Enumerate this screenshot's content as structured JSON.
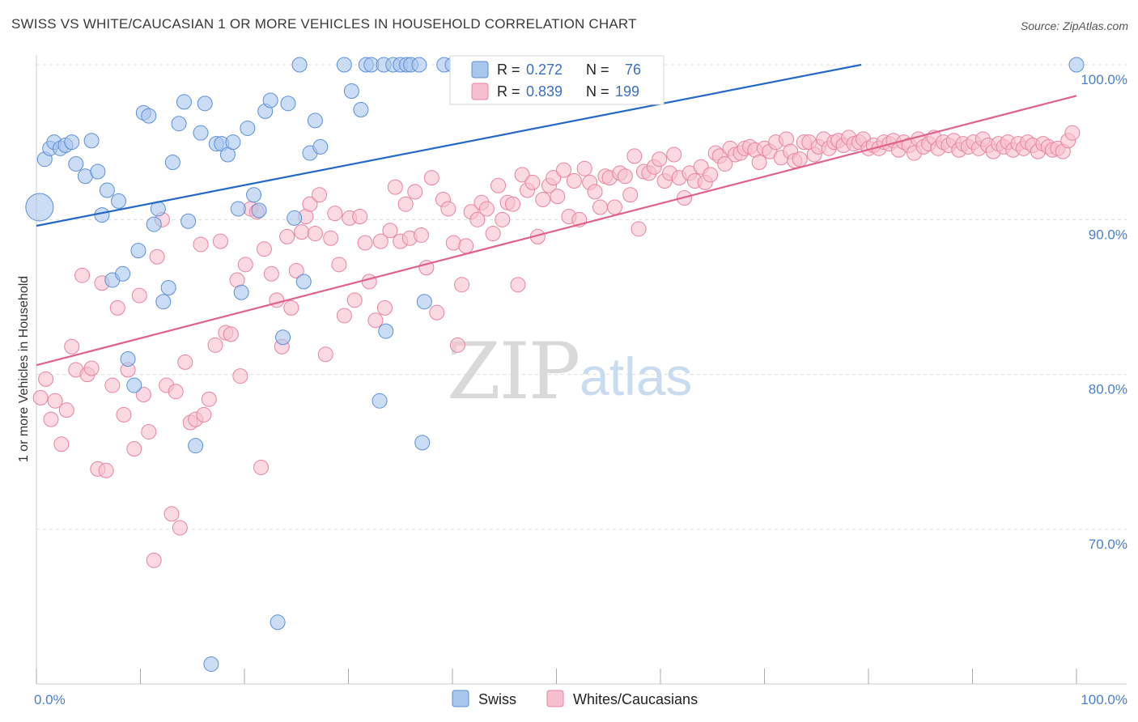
{
  "title": "SWISS VS WHITE/CAUCASIAN 1 OR MORE VEHICLES IN HOUSEHOLD CORRELATION CHART",
  "source": "Source: ZipAtlas.com",
  "watermark": {
    "zip": "ZIP",
    "atlas": "atlas"
  },
  "colors": {
    "swiss_fill": "#a9c6ec",
    "swiss_stroke": "#5b8fd6",
    "swiss_line": "#2468c8",
    "white_fill": "#f6bfd0",
    "white_stroke": "#e8839f",
    "white_line": "#e0628c",
    "axis_text": "#4a7fc9",
    "grid": "#dddddd"
  },
  "legend": {
    "rows": [
      {
        "r_label": "R =",
        "r_value": "0.272",
        "n_label": "N =",
        "n_value": "76"
      },
      {
        "r_label": "R =",
        "r_value": "0.839",
        "n_label": "N =",
        "n_value": "199"
      }
    ]
  },
  "bottom_legend": [
    "Swiss",
    "Whites/Caucasians"
  ],
  "chart_data": {
    "type": "scatter",
    "title": "SWISS VS WHITE/CAUCASIAN 1 OR MORE VEHICLES IN HOUSEHOLD CORRELATION CHART",
    "xlabel": "",
    "ylabel": "1 or more Vehicles in Household",
    "xlim": [
      0,
      100
    ],
    "ylim": [
      60.5,
      101.5
    ],
    "x_tick_labels": [
      "0.0%",
      "100.0%"
    ],
    "y_ticks": [
      70,
      80,
      90,
      100
    ],
    "y_tick_labels": [
      "70.0%",
      "80.0%",
      "90.0%",
      "100.0%"
    ],
    "grid": true,
    "legend_position": "top-center",
    "series": [
      {
        "name": "Swiss",
        "R": 0.272,
        "N": 76,
        "trend": {
          "x": [
            0,
            79.3
          ],
          "y": [
            89.6,
            100.0
          ]
        },
        "points": [
          [
            0.3,
            90.8
          ],
          [
            0.8,
            93.9
          ],
          [
            1.3,
            94.6
          ],
          [
            1.7,
            95.0
          ],
          [
            2.3,
            94.6
          ],
          [
            2.8,
            94.8
          ],
          [
            3.4,
            95.0
          ],
          [
            3.8,
            93.6
          ],
          [
            4.7,
            92.8
          ],
          [
            5.3,
            95.1
          ],
          [
            5.9,
            93.1
          ],
          [
            6.3,
            90.3
          ],
          [
            6.8,
            91.9
          ],
          [
            7.3,
            86.1
          ],
          [
            7.9,
            91.2
          ],
          [
            8.3,
            86.5
          ],
          [
            8.8,
            81.0
          ],
          [
            9.4,
            79.3
          ],
          [
            9.8,
            88.0
          ],
          [
            10.3,
            96.9
          ],
          [
            10.8,
            96.7
          ],
          [
            11.3,
            89.7
          ],
          [
            11.7,
            90.7
          ],
          [
            12.2,
            84.7
          ],
          [
            12.7,
            85.6
          ],
          [
            13.1,
            93.7
          ],
          [
            13.7,
            96.2
          ],
          [
            14.2,
            97.6
          ],
          [
            14.6,
            89.9
          ],
          [
            15.3,
            75.4
          ],
          [
            15.8,
            95.6
          ],
          [
            16.2,
            97.5
          ],
          [
            16.8,
            61.3
          ],
          [
            17.3,
            94.9
          ],
          [
            17.8,
            94.9
          ],
          [
            18.4,
            94.2
          ],
          [
            18.9,
            95.0
          ],
          [
            19.4,
            90.7
          ],
          [
            19.7,
            85.3
          ],
          [
            20.3,
            95.9
          ],
          [
            20.9,
            91.6
          ],
          [
            21.4,
            90.6
          ],
          [
            22.0,
            97.0
          ],
          [
            22.5,
            97.7
          ],
          [
            23.2,
            64.0
          ],
          [
            23.7,
            82.4
          ],
          [
            24.2,
            97.5
          ],
          [
            24.8,
            90.1
          ],
          [
            25.3,
            100.0
          ],
          [
            25.7,
            86.0
          ],
          [
            26.3,
            94.3
          ],
          [
            26.8,
            96.4
          ],
          [
            27.3,
            94.7
          ],
          [
            29.6,
            100.0
          ],
          [
            30.3,
            98.3
          ],
          [
            31.2,
            97.1
          ],
          [
            31.7,
            100.0
          ],
          [
            32.2,
            100.0
          ],
          [
            33.0,
            78.3
          ],
          [
            33.4,
            100.0
          ],
          [
            33.6,
            82.8
          ],
          [
            34.3,
            100.0
          ],
          [
            35.0,
            100.0
          ],
          [
            35.6,
            100.0
          ],
          [
            36.0,
            100.0
          ],
          [
            36.8,
            100.0
          ],
          [
            37.1,
            75.6
          ],
          [
            37.3,
            84.7
          ],
          [
            39.2,
            100.0
          ],
          [
            40.0,
            100.0
          ],
          [
            40.9,
            100.0
          ],
          [
            41.9,
            100.0
          ],
          [
            42.7,
            100.0
          ],
          [
            43.8,
            100.0
          ],
          [
            44.5,
            100.0
          ],
          [
            100.0,
            100.0
          ]
        ]
      },
      {
        "name": "Whites/Caucasians",
        "R": 0.839,
        "N": 199,
        "trend": {
          "x": [
            0,
            100
          ],
          "y": [
            80.6,
            98.0
          ]
        },
        "points": [
          [
            0.4,
            78.5
          ],
          [
            0.9,
            79.7
          ],
          [
            1.4,
            77.1
          ],
          [
            1.8,
            78.3
          ],
          [
            2.4,
            75.5
          ],
          [
            2.9,
            77.7
          ],
          [
            3.4,
            81.8
          ],
          [
            3.8,
            80.3
          ],
          [
            4.4,
            86.4
          ],
          [
            4.9,
            80.0
          ],
          [
            5.3,
            80.4
          ],
          [
            5.9,
            73.9
          ],
          [
            6.3,
            85.9
          ],
          [
            6.7,
            73.8
          ],
          [
            7.3,
            79.3
          ],
          [
            7.8,
            84.3
          ],
          [
            8.4,
            77.4
          ],
          [
            8.8,
            80.3
          ],
          [
            9.4,
            75.2
          ],
          [
            9.9,
            85.1
          ],
          [
            10.3,
            78.7
          ],
          [
            10.8,
            76.3
          ],
          [
            11.3,
            68.0
          ],
          [
            11.6,
            87.6
          ],
          [
            12.1,
            90.0
          ],
          [
            12.5,
            79.3
          ],
          [
            13.0,
            71.0
          ],
          [
            13.4,
            78.9
          ],
          [
            13.8,
            70.1
          ],
          [
            14.3,
            80.8
          ],
          [
            14.8,
            76.9
          ],
          [
            15.3,
            77.1
          ],
          [
            15.8,
            88.4
          ],
          [
            16.1,
            77.4
          ],
          [
            16.6,
            78.4
          ],
          [
            17.2,
            81.9
          ],
          [
            17.7,
            88.6
          ],
          [
            18.2,
            82.7
          ],
          [
            18.7,
            82.6
          ],
          [
            19.3,
            86.1
          ],
          [
            19.6,
            79.9
          ],
          [
            20.1,
            87.1
          ],
          [
            20.6,
            90.7
          ],
          [
            21.2,
            90.5
          ],
          [
            21.6,
            74.0
          ],
          [
            21.9,
            88.1
          ],
          [
            22.6,
            86.5
          ],
          [
            23.1,
            84.8
          ],
          [
            23.6,
            81.8
          ],
          [
            24.1,
            88.9
          ],
          [
            24.5,
            84.3
          ],
          [
            25.0,
            86.7
          ],
          [
            25.5,
            89.2
          ],
          [
            25.9,
            90.2
          ],
          [
            26.3,
            91.0
          ],
          [
            26.8,
            89.1
          ],
          [
            27.2,
            91.6
          ],
          [
            27.8,
            81.3
          ],
          [
            28.3,
            88.8
          ],
          [
            28.7,
            90.4
          ],
          [
            29.1,
            87.1
          ],
          [
            29.6,
            83.8
          ],
          [
            30.1,
            90.1
          ],
          [
            30.6,
            84.8
          ],
          [
            31.1,
            90.2
          ],
          [
            31.6,
            88.5
          ],
          [
            32.0,
            86.0
          ],
          [
            32.6,
            83.5
          ],
          [
            33.1,
            88.6
          ],
          [
            33.5,
            84.3
          ],
          [
            34.0,
            89.3
          ],
          [
            34.5,
            92.1
          ],
          [
            35.0,
            88.6
          ],
          [
            35.5,
            91.0
          ],
          [
            35.9,
            88.8
          ],
          [
            36.4,
            91.8
          ],
          [
            37.0,
            89.0
          ],
          [
            37.5,
            86.9
          ],
          [
            38.0,
            92.7
          ],
          [
            38.5,
            84.0
          ],
          [
            39.1,
            91.3
          ],
          [
            39.6,
            90.7
          ],
          [
            40.1,
            88.5
          ],
          [
            40.5,
            81.9
          ],
          [
            40.9,
            85.8
          ],
          [
            41.3,
            88.3
          ],
          [
            41.8,
            90.5
          ],
          [
            42.4,
            90.0
          ],
          [
            42.8,
            91.1
          ],
          [
            43.3,
            90.7
          ],
          [
            43.9,
            89.1
          ],
          [
            44.4,
            92.2
          ],
          [
            44.8,
            90.0
          ],
          [
            45.3,
            91.1
          ],
          [
            45.8,
            91.0
          ],
          [
            46.3,
            85.8
          ],
          [
            46.7,
            92.9
          ],
          [
            47.2,
            91.9
          ],
          [
            47.7,
            92.4
          ],
          [
            48.2,
            88.9
          ],
          [
            48.7,
            91.3
          ],
          [
            49.3,
            92.2
          ],
          [
            49.7,
            92.7
          ],
          [
            50.1,
            91.5
          ],
          [
            50.7,
            93.2
          ],
          [
            51.2,
            90.2
          ],
          [
            51.7,
            92.5
          ],
          [
            52.2,
            90.0
          ],
          [
            52.7,
            93.3
          ],
          [
            53.2,
            92.4
          ],
          [
            53.7,
            91.8
          ],
          [
            54.2,
            90.8
          ],
          [
            54.7,
            92.8
          ],
          [
            55.1,
            92.7
          ],
          [
            55.6,
            90.8
          ],
          [
            56.1,
            93.0
          ],
          [
            56.6,
            92.8
          ],
          [
            57.1,
            91.6
          ],
          [
            57.5,
            94.1
          ],
          [
            57.9,
            89.4
          ],
          [
            58.4,
            93.1
          ],
          [
            58.9,
            93.0
          ],
          [
            59.4,
            93.4
          ],
          [
            59.9,
            93.9
          ],
          [
            60.4,
            92.5
          ],
          [
            60.9,
            93.0
          ],
          [
            61.3,
            94.2
          ],
          [
            61.8,
            92.7
          ],
          [
            62.3,
            91.4
          ],
          [
            62.8,
            93.0
          ],
          [
            63.3,
            92.5
          ],
          [
            63.9,
            93.4
          ],
          [
            64.3,
            92.4
          ],
          [
            64.8,
            92.9
          ],
          [
            65.3,
            94.3
          ],
          [
            65.7,
            94.1
          ],
          [
            66.2,
            93.6
          ],
          [
            66.7,
            94.6
          ],
          [
            67.2,
            94.2
          ],
          [
            67.7,
            94.3
          ],
          [
            68.1,
            94.6
          ],
          [
            68.6,
            94.7
          ],
          [
            69.1,
            94.5
          ],
          [
            69.5,
            93.7
          ],
          [
            70.0,
            94.6
          ],
          [
            70.5,
            94.4
          ],
          [
            71.1,
            95.0
          ],
          [
            71.6,
            94.0
          ],
          [
            72.1,
            95.2
          ],
          [
            72.5,
            94.4
          ],
          [
            72.9,
            93.8
          ],
          [
            73.4,
            93.9
          ],
          [
            73.8,
            95.0
          ],
          [
            74.3,
            95.0
          ],
          [
            74.8,
            94.2
          ],
          [
            75.2,
            94.7
          ],
          [
            75.7,
            95.2
          ],
          [
            76.2,
            94.6
          ],
          [
            76.7,
            95.0
          ],
          [
            77.1,
            95.1
          ],
          [
            77.6,
            94.8
          ],
          [
            78.1,
            95.3
          ],
          [
            78.6,
            94.9
          ],
          [
            79.1,
            95.0
          ],
          [
            79.5,
            95.2
          ],
          [
            80.0,
            94.6
          ],
          [
            80.5,
            94.8
          ],
          [
            81.0,
            94.6
          ],
          [
            81.5,
            95.0
          ],
          [
            82.0,
            94.9
          ],
          [
            82.4,
            95.1
          ],
          [
            82.9,
            94.5
          ],
          [
            83.4,
            95.0
          ],
          [
            83.9,
            94.8
          ],
          [
            84.4,
            94.3
          ],
          [
            84.8,
            95.2
          ],
          [
            85.3,
            94.7
          ],
          [
            85.8,
            94.9
          ],
          [
            86.3,
            95.3
          ],
          [
            86.7,
            94.6
          ],
          [
            87.2,
            95.0
          ],
          [
            87.7,
            94.8
          ],
          [
            88.2,
            95.1
          ],
          [
            88.7,
            94.5
          ],
          [
            89.1,
            94.9
          ],
          [
            89.6,
            94.7
          ],
          [
            90.1,
            95.0
          ],
          [
            90.6,
            94.6
          ],
          [
            91.0,
            95.2
          ],
          [
            91.5,
            94.8
          ],
          [
            92.0,
            94.4
          ],
          [
            92.5,
            94.9
          ],
          [
            93.0,
            94.7
          ],
          [
            93.4,
            95.0
          ],
          [
            93.9,
            94.5
          ],
          [
            94.4,
            94.9
          ],
          [
            94.9,
            94.6
          ],
          [
            95.3,
            95.0
          ],
          [
            95.8,
            94.8
          ],
          [
            96.3,
            94.4
          ],
          [
            96.8,
            94.9
          ],
          [
            97.3,
            94.7
          ],
          [
            97.7,
            94.5
          ],
          [
            98.2,
            94.6
          ],
          [
            98.7,
            94.4
          ],
          [
            99.2,
            95.1
          ],
          [
            99.6,
            95.6
          ]
        ]
      }
    ]
  }
}
